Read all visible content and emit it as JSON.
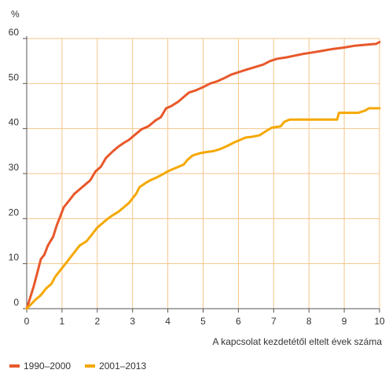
{
  "chart_data": {
    "type": "line",
    "title": "",
    "ylabel": "%",
    "xlabel": "A kapcsolat kezdetétől eltelt évek száma",
    "xlim": [
      0,
      10
    ],
    "ylim": [
      0,
      60
    ],
    "xticks": [
      0,
      1,
      2,
      3,
      4,
      5,
      6,
      7,
      8,
      9,
      10
    ],
    "yticks": [
      0,
      10,
      20,
      30,
      40,
      50,
      60
    ],
    "grid": true,
    "legend_position": "bottom-left",
    "series": [
      {
        "name": "1990–2000",
        "color": "#E8582A",
        "points": [
          [
            0,
            0
          ],
          [
            0.1,
            2.5
          ],
          [
            0.2,
            5
          ],
          [
            0.3,
            8
          ],
          [
            0.4,
            11
          ],
          [
            0.5,
            12
          ],
          [
            0.6,
            14
          ],
          [
            0.75,
            16
          ],
          [
            0.85,
            18.5
          ],
          [
            0.95,
            20.5
          ],
          [
            1.05,
            22.5
          ],
          [
            1.2,
            24
          ],
          [
            1.35,
            25.5
          ],
          [
            1.5,
            26.5
          ],
          [
            1.65,
            27.5
          ],
          [
            1.8,
            28.5
          ],
          [
            1.95,
            30.5
          ],
          [
            2.1,
            31.5
          ],
          [
            2.25,
            33.5
          ],
          [
            2.45,
            35
          ],
          [
            2.6,
            36
          ],
          [
            2.75,
            36.8
          ],
          [
            2.9,
            37.5
          ],
          [
            3.05,
            38.5
          ],
          [
            3.25,
            39.8
          ],
          [
            3.45,
            40.5
          ],
          [
            3.65,
            41.8
          ],
          [
            3.8,
            42.5
          ],
          [
            3.95,
            44.5
          ],
          [
            4.1,
            45
          ],
          [
            4.3,
            46
          ],
          [
            4.45,
            47
          ],
          [
            4.6,
            48
          ],
          [
            4.8,
            48.5
          ],
          [
            5.0,
            49.2
          ],
          [
            5.2,
            50
          ],
          [
            5.4,
            50.5
          ],
          [
            5.6,
            51.2
          ],
          [
            5.8,
            52
          ],
          [
            6.0,
            52.5
          ],
          [
            6.2,
            53
          ],
          [
            6.45,
            53.6
          ],
          [
            6.7,
            54.2
          ],
          [
            6.9,
            55
          ],
          [
            7.1,
            55.5
          ],
          [
            7.35,
            55.8
          ],
          [
            7.6,
            56.2
          ],
          [
            7.85,
            56.6
          ],
          [
            8.1,
            56.9
          ],
          [
            8.4,
            57.3
          ],
          [
            8.7,
            57.7
          ],
          [
            9.0,
            58
          ],
          [
            9.3,
            58.4
          ],
          [
            9.6,
            58.6
          ],
          [
            9.9,
            58.8
          ],
          [
            10,
            59.2
          ]
        ]
      },
      {
        "name": "2001–2013",
        "color": "#F5A800",
        "points": [
          [
            0,
            0
          ],
          [
            0.1,
            0.8
          ],
          [
            0.25,
            2
          ],
          [
            0.4,
            3
          ],
          [
            0.55,
            4.5
          ],
          [
            0.7,
            5.5
          ],
          [
            0.8,
            7
          ],
          [
            0.9,
            8
          ],
          [
            1.0,
            9
          ],
          [
            1.2,
            11
          ],
          [
            1.35,
            12.5
          ],
          [
            1.5,
            14
          ],
          [
            1.7,
            15
          ],
          [
            1.85,
            16.5
          ],
          [
            2.0,
            18
          ],
          [
            2.15,
            19
          ],
          [
            2.3,
            20
          ],
          [
            2.45,
            20.8
          ],
          [
            2.6,
            21.5
          ],
          [
            2.75,
            22.5
          ],
          [
            2.9,
            23.5
          ],
          [
            3.0,
            24.5
          ],
          [
            3.1,
            25.5
          ],
          [
            3.2,
            27
          ],
          [
            3.35,
            27.8
          ],
          [
            3.5,
            28.5
          ],
          [
            3.7,
            29.2
          ],
          [
            3.85,
            29.8
          ],
          [
            4.0,
            30.5
          ],
          [
            4.15,
            31
          ],
          [
            4.3,
            31.5
          ],
          [
            4.45,
            32
          ],
          [
            4.55,
            33
          ],
          [
            4.7,
            34
          ],
          [
            4.9,
            34.5
          ],
          [
            5.1,
            34.8
          ],
          [
            5.3,
            35
          ],
          [
            5.5,
            35.5
          ],
          [
            5.7,
            36.2
          ],
          [
            5.9,
            37
          ],
          [
            6.0,
            37.3
          ],
          [
            6.2,
            38
          ],
          [
            6.4,
            38.2
          ],
          [
            6.6,
            38.5
          ],
          [
            6.8,
            39.5
          ],
          [
            6.95,
            40.2
          ],
          [
            7.2,
            40.5
          ],
          [
            7.3,
            41.5
          ],
          [
            7.45,
            42
          ],
          [
            7.7,
            42
          ],
          [
            8.0,
            42
          ],
          [
            8.3,
            42
          ],
          [
            8.6,
            42
          ],
          [
            8.8,
            42
          ],
          [
            8.85,
            43.5
          ],
          [
            9.1,
            43.5
          ],
          [
            9.4,
            43.5
          ],
          [
            9.6,
            44
          ],
          [
            9.7,
            44.5
          ],
          [
            10,
            44.5
          ]
        ]
      }
    ]
  }
}
